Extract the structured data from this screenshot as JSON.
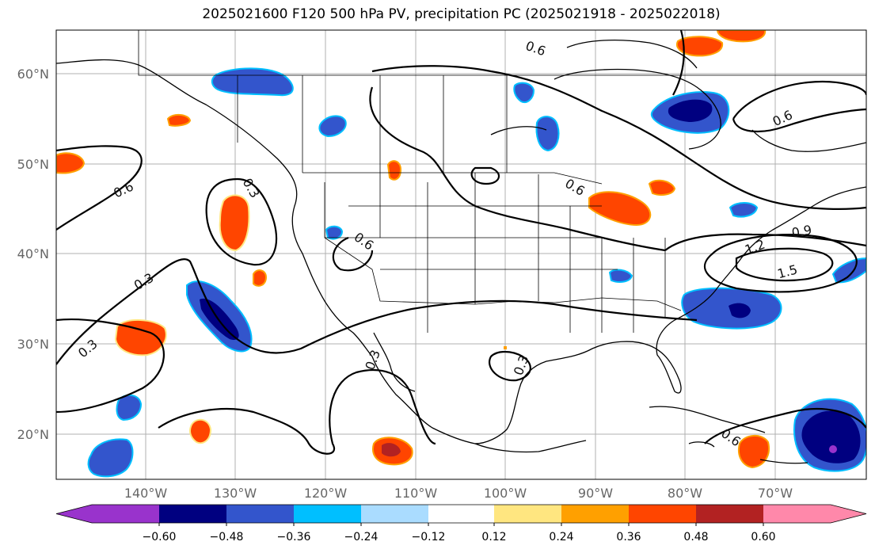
{
  "title": "2025021600 F120 500 hPa PV, precipitation PC (2025021918 - 2025022018)",
  "lat_labels": [
    "60°N",
    "50°N",
    "40°N",
    "30°N",
    "20°N"
  ],
  "lon_labels": [
    "140°W",
    "130°W",
    "120°W",
    "110°W",
    "100°W",
    "90°W",
    "80°W",
    "70°W"
  ],
  "colorbar": {
    "ticks": [
      "−0.60",
      "−0.48",
      "−0.36",
      "−0.24",
      "−0.12",
      "0.12",
      "0.24",
      "0.36",
      "0.48",
      "0.60"
    ],
    "colors": [
      "#9933cc",
      "#000080",
      "#3355cc",
      "#00bfff",
      "#aadcff",
      "#ffffff",
      "#ffe680",
      "#ffa000",
      "#ff4500",
      "#b22222",
      "#ff88aa"
    ]
  },
  "contour_labels": [
    "0.6",
    "0.6",
    "0.6",
    "0.6",
    "0.3",
    "0.3",
    "0.3",
    "0.3",
    "0.6",
    "0.9",
    "1.2",
    "1.5",
    "0.6",
    "0.3"
  ],
  "map_features": {
    "projection": "equirectangular",
    "layers": [
      "coastlines",
      "country borders",
      "US state borders",
      "PV contours",
      "precipitation PC shading"
    ]
  }
}
